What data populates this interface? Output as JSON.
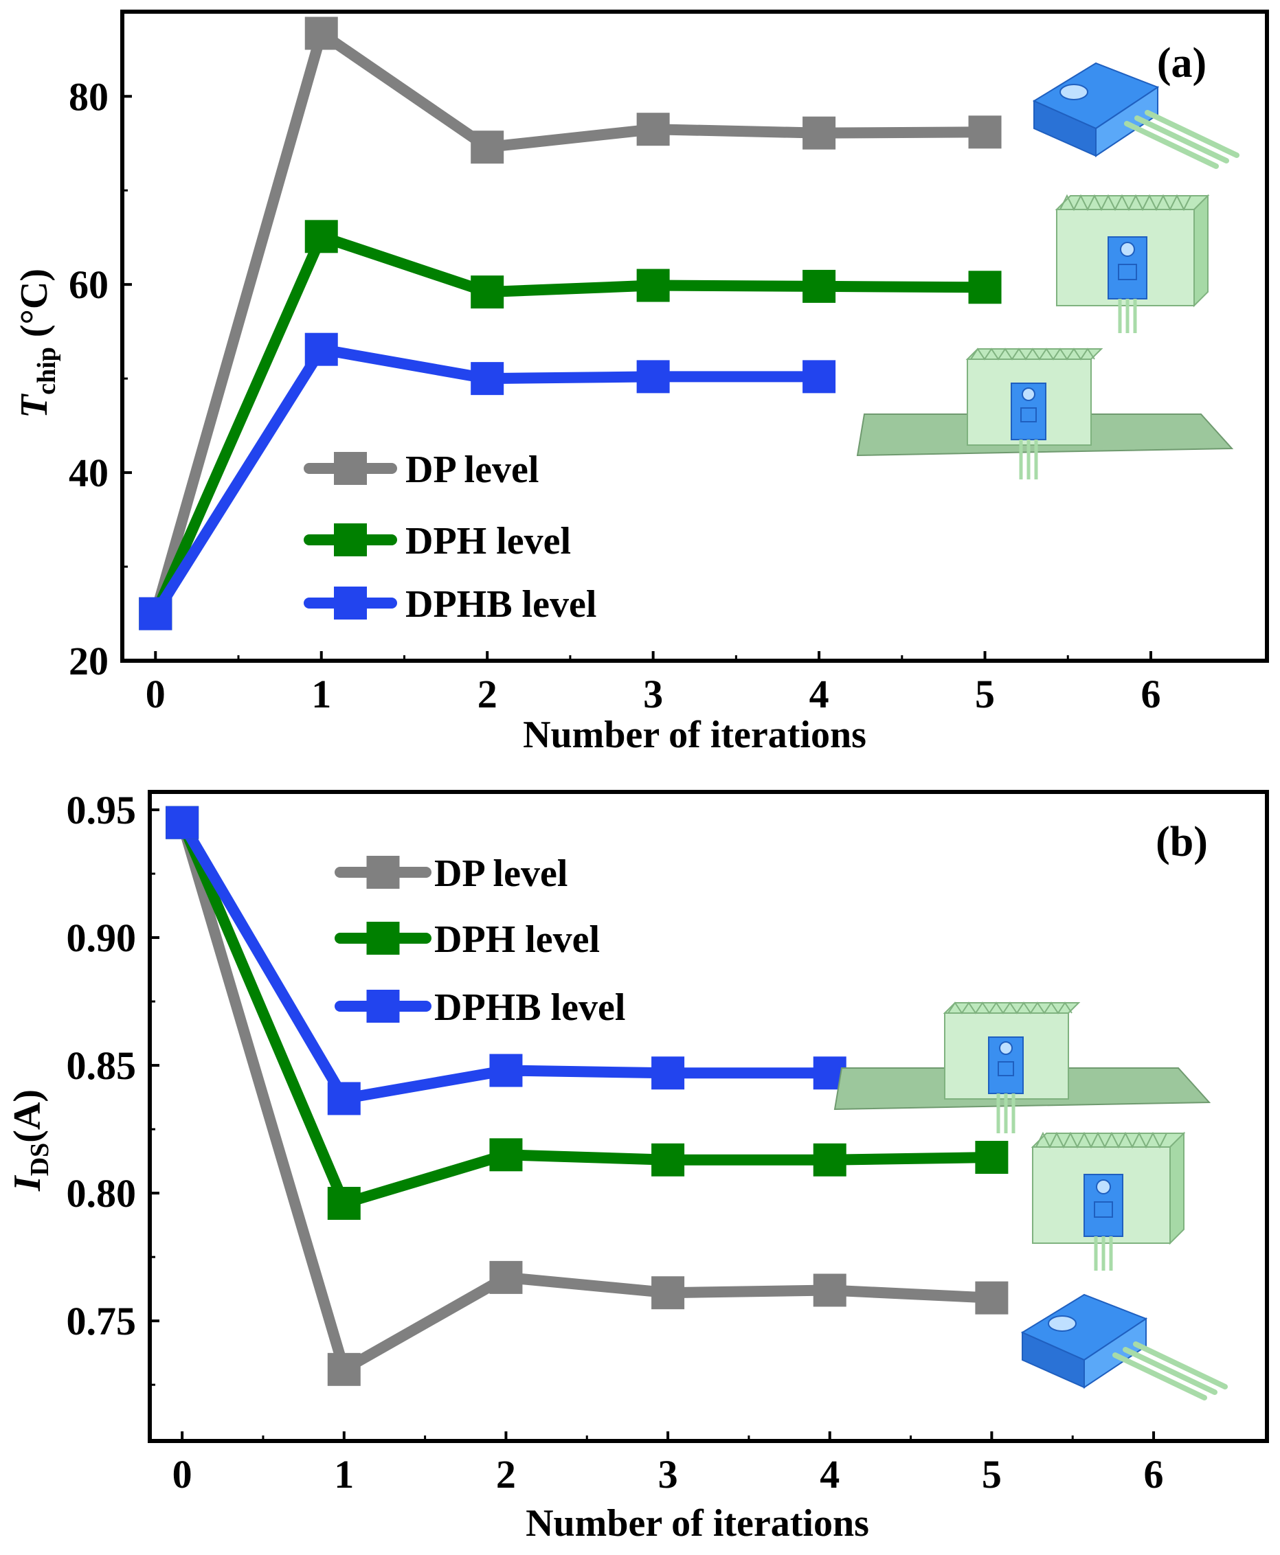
{
  "chart_data": [
    {
      "panel_label": "(a)",
      "type": "line",
      "title": "",
      "xlabel": "Number of iterations",
      "ylabel_main": "T",
      "ylabel_sub": "chip",
      "ylabel_rest": " (°C)",
      "xlim": [
        -0.2,
        6.7
      ],
      "ylim": [
        20,
        89
      ],
      "x_ticks": [
        "0",
        "1",
        "2",
        "3",
        "4",
        "5",
        "6"
      ],
      "y_ticks": [
        "20",
        "40",
        "60",
        "80"
      ],
      "legend_position": "lower-left",
      "series": [
        {
          "name": "DP level",
          "color": "#808080",
          "x": [
            0,
            1,
            2,
            3,
            4,
            5
          ],
          "values": [
            25,
            86.7,
            74.6,
            76.5,
            76.1,
            76.2
          ]
        },
        {
          "name": "DPH level",
          "color": "#008000",
          "x": [
            0,
            1,
            2,
            3,
            4,
            5
          ],
          "values": [
            25,
            65.1,
            59.2,
            59.9,
            59.8,
            59.7
          ]
        },
        {
          "name": "DPHB level",
          "color": "#2244ee",
          "x": [
            0,
            1,
            2,
            3,
            4
          ],
          "values": [
            25,
            53.1,
            50.0,
            50.2,
            50.2
          ]
        }
      ]
    },
    {
      "panel_label": "(b)",
      "type": "line",
      "title": "",
      "xlabel": "Number of iterations",
      "ylabel_main": "I",
      "ylabel_sub": "DS",
      "ylabel_rest": "(A)",
      "xlim": [
        -0.2,
        6.7
      ],
      "ylim": [
        0.703,
        0.957
      ],
      "x_ticks": [
        "0",
        "1",
        "2",
        "3",
        "4",
        "5",
        "6"
      ],
      "y_ticks": [
        "0.75",
        "0.80",
        "0.85",
        "0.90",
        "0.95"
      ],
      "legend_position": "top-left",
      "series": [
        {
          "name": "DP level",
          "color": "#808080",
          "x": [
            0,
            1,
            2,
            3,
            4,
            5
          ],
          "values": [
            0.945,
            0.731,
            0.767,
            0.761,
            0.762,
            0.759
          ]
        },
        {
          "name": "DPH level",
          "color": "#008000",
          "x": [
            0,
            1,
            2,
            3,
            4,
            5
          ],
          "values": [
            0.945,
            0.796,
            0.815,
            0.813,
            0.813,
            0.814
          ]
        },
        {
          "name": "DPHB level",
          "color": "#2244ee",
          "x": [
            0,
            1,
            2,
            3,
            4
          ],
          "values": [
            0.945,
            0.837,
            0.848,
            0.847,
            0.847
          ]
        }
      ]
    }
  ]
}
